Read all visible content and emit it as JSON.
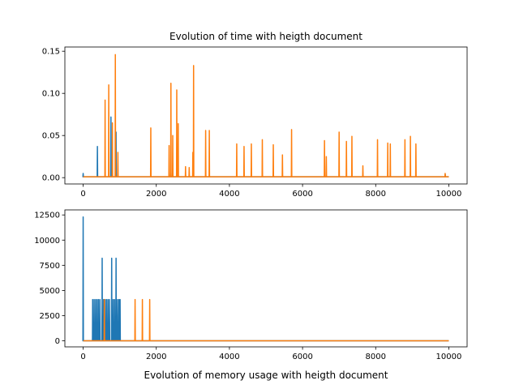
{
  "chart_data": [
    {
      "type": "line",
      "title": "Evolution of time with heigth document",
      "xlabel": "",
      "ylabel": "",
      "xlim": [
        -500,
        10500
      ],
      "ylim": [
        -0.0075,
        0.155
      ],
      "xticks": [
        0,
        2000,
        4000,
        6000,
        8000,
        10000
      ],
      "xtick_labels": [
        "0",
        "2000",
        "4000",
        "6000",
        "8000",
        "10000"
      ],
      "yticks": [
        0.0,
        0.05,
        0.1,
        0.15
      ],
      "ytick_labels": [
        "0.00",
        "0.05",
        "0.10",
        "0.15"
      ],
      "grid": false,
      "colors": [
        "#1f77b4",
        "#ff7f0e"
      ],
      "series": [
        {
          "baseline": 0.001,
          "x_end": 10000,
          "spikes": [
            [
              0,
              0.005
            ],
            [
              390,
              0.037
            ],
            [
              760,
              0.072
            ],
            [
              900,
              0.054
            ],
            [
              2400,
              0.006
            ],
            [
              9900,
              0.004
            ]
          ]
        },
        {
          "baseline": 0.001,
          "x_end": 10000,
          "spikes": [
            [
              600,
              0.092
            ],
            [
              700,
              0.11
            ],
            [
              800,
              0.065
            ],
            [
              880,
              0.146
            ],
            [
              950,
              0.03
            ],
            [
              1850,
              0.059
            ],
            [
              2350,
              0.038
            ],
            [
              2400,
              0.112
            ],
            [
              2450,
              0.05
            ],
            [
              2560,
              0.104
            ],
            [
              2600,
              0.064
            ],
            [
              2800,
              0.013
            ],
            [
              2900,
              0.012
            ],
            [
              3000,
              0.03
            ],
            [
              3020,
              0.133
            ],
            [
              3350,
              0.056
            ],
            [
              3450,
              0.056
            ],
            [
              4200,
              0.04
            ],
            [
              4400,
              0.037
            ],
            [
              4600,
              0.04
            ],
            [
              4900,
              0.045
            ],
            [
              5200,
              0.039
            ],
            [
              5450,
              0.027
            ],
            [
              5700,
              0.057
            ],
            [
              6600,
              0.044
            ],
            [
              6650,
              0.025
            ],
            [
              7000,
              0.054
            ],
            [
              7200,
              0.043
            ],
            [
              7350,
              0.049
            ],
            [
              7650,
              0.014
            ],
            [
              8050,
              0.045
            ],
            [
              8330,
              0.041
            ],
            [
              8400,
              0.04
            ],
            [
              8800,
              0.045
            ],
            [
              8950,
              0.049
            ],
            [
              9100,
              0.04
            ],
            [
              9900,
              0.005
            ]
          ]
        }
      ]
    },
    {
      "type": "line",
      "title": "",
      "xlabel": "Evolution of memory usage with heigth document",
      "ylabel": "",
      "xlim": [
        -500,
        10500
      ],
      "ylim": [
        -600,
        13000
      ],
      "xticks": [
        0,
        2000,
        4000,
        6000,
        8000,
        10000
      ],
      "xtick_labels": [
        "0",
        "2000",
        "4000",
        "6000",
        "8000",
        "10000"
      ],
      "yticks": [
        0,
        2500,
        5000,
        7500,
        10000,
        12500
      ],
      "ytick_labels": [
        "0",
        "2500",
        "5000",
        "7500",
        "10000",
        "12500"
      ],
      "grid": false,
      "colors": [
        "#1f77b4",
        "#ff7f0e"
      ],
      "series": [
        {
          "baseline": 0,
          "x_end": 10000,
          "spikes": [
            [
              0,
              12300
            ],
            [
              260,
              4100
            ],
            [
              300,
              4100
            ],
            [
              340,
              4100
            ],
            [
              380,
              4100
            ],
            [
              420,
              4100
            ],
            [
              460,
              4100
            ],
            [
              520,
              8200
            ],
            [
              560,
              4100
            ],
            [
              600,
              4100
            ],
            [
              640,
              4100
            ],
            [
              680,
              4100
            ],
            [
              720,
              4100
            ],
            [
              780,
              8200
            ],
            [
              820,
              4100
            ],
            [
              860,
              4100
            ],
            [
              900,
              8200
            ],
            [
              940,
              4100
            ],
            [
              980,
              4100
            ],
            [
              1010,
              4100
            ]
          ]
        },
        {
          "baseline": 0,
          "x_end": 10000,
          "spikes": [
            [
              580,
              4100
            ],
            [
              1420,
              4100
            ],
            [
              1620,
              4100
            ],
            [
              1820,
              4100
            ]
          ]
        }
      ]
    }
  ]
}
